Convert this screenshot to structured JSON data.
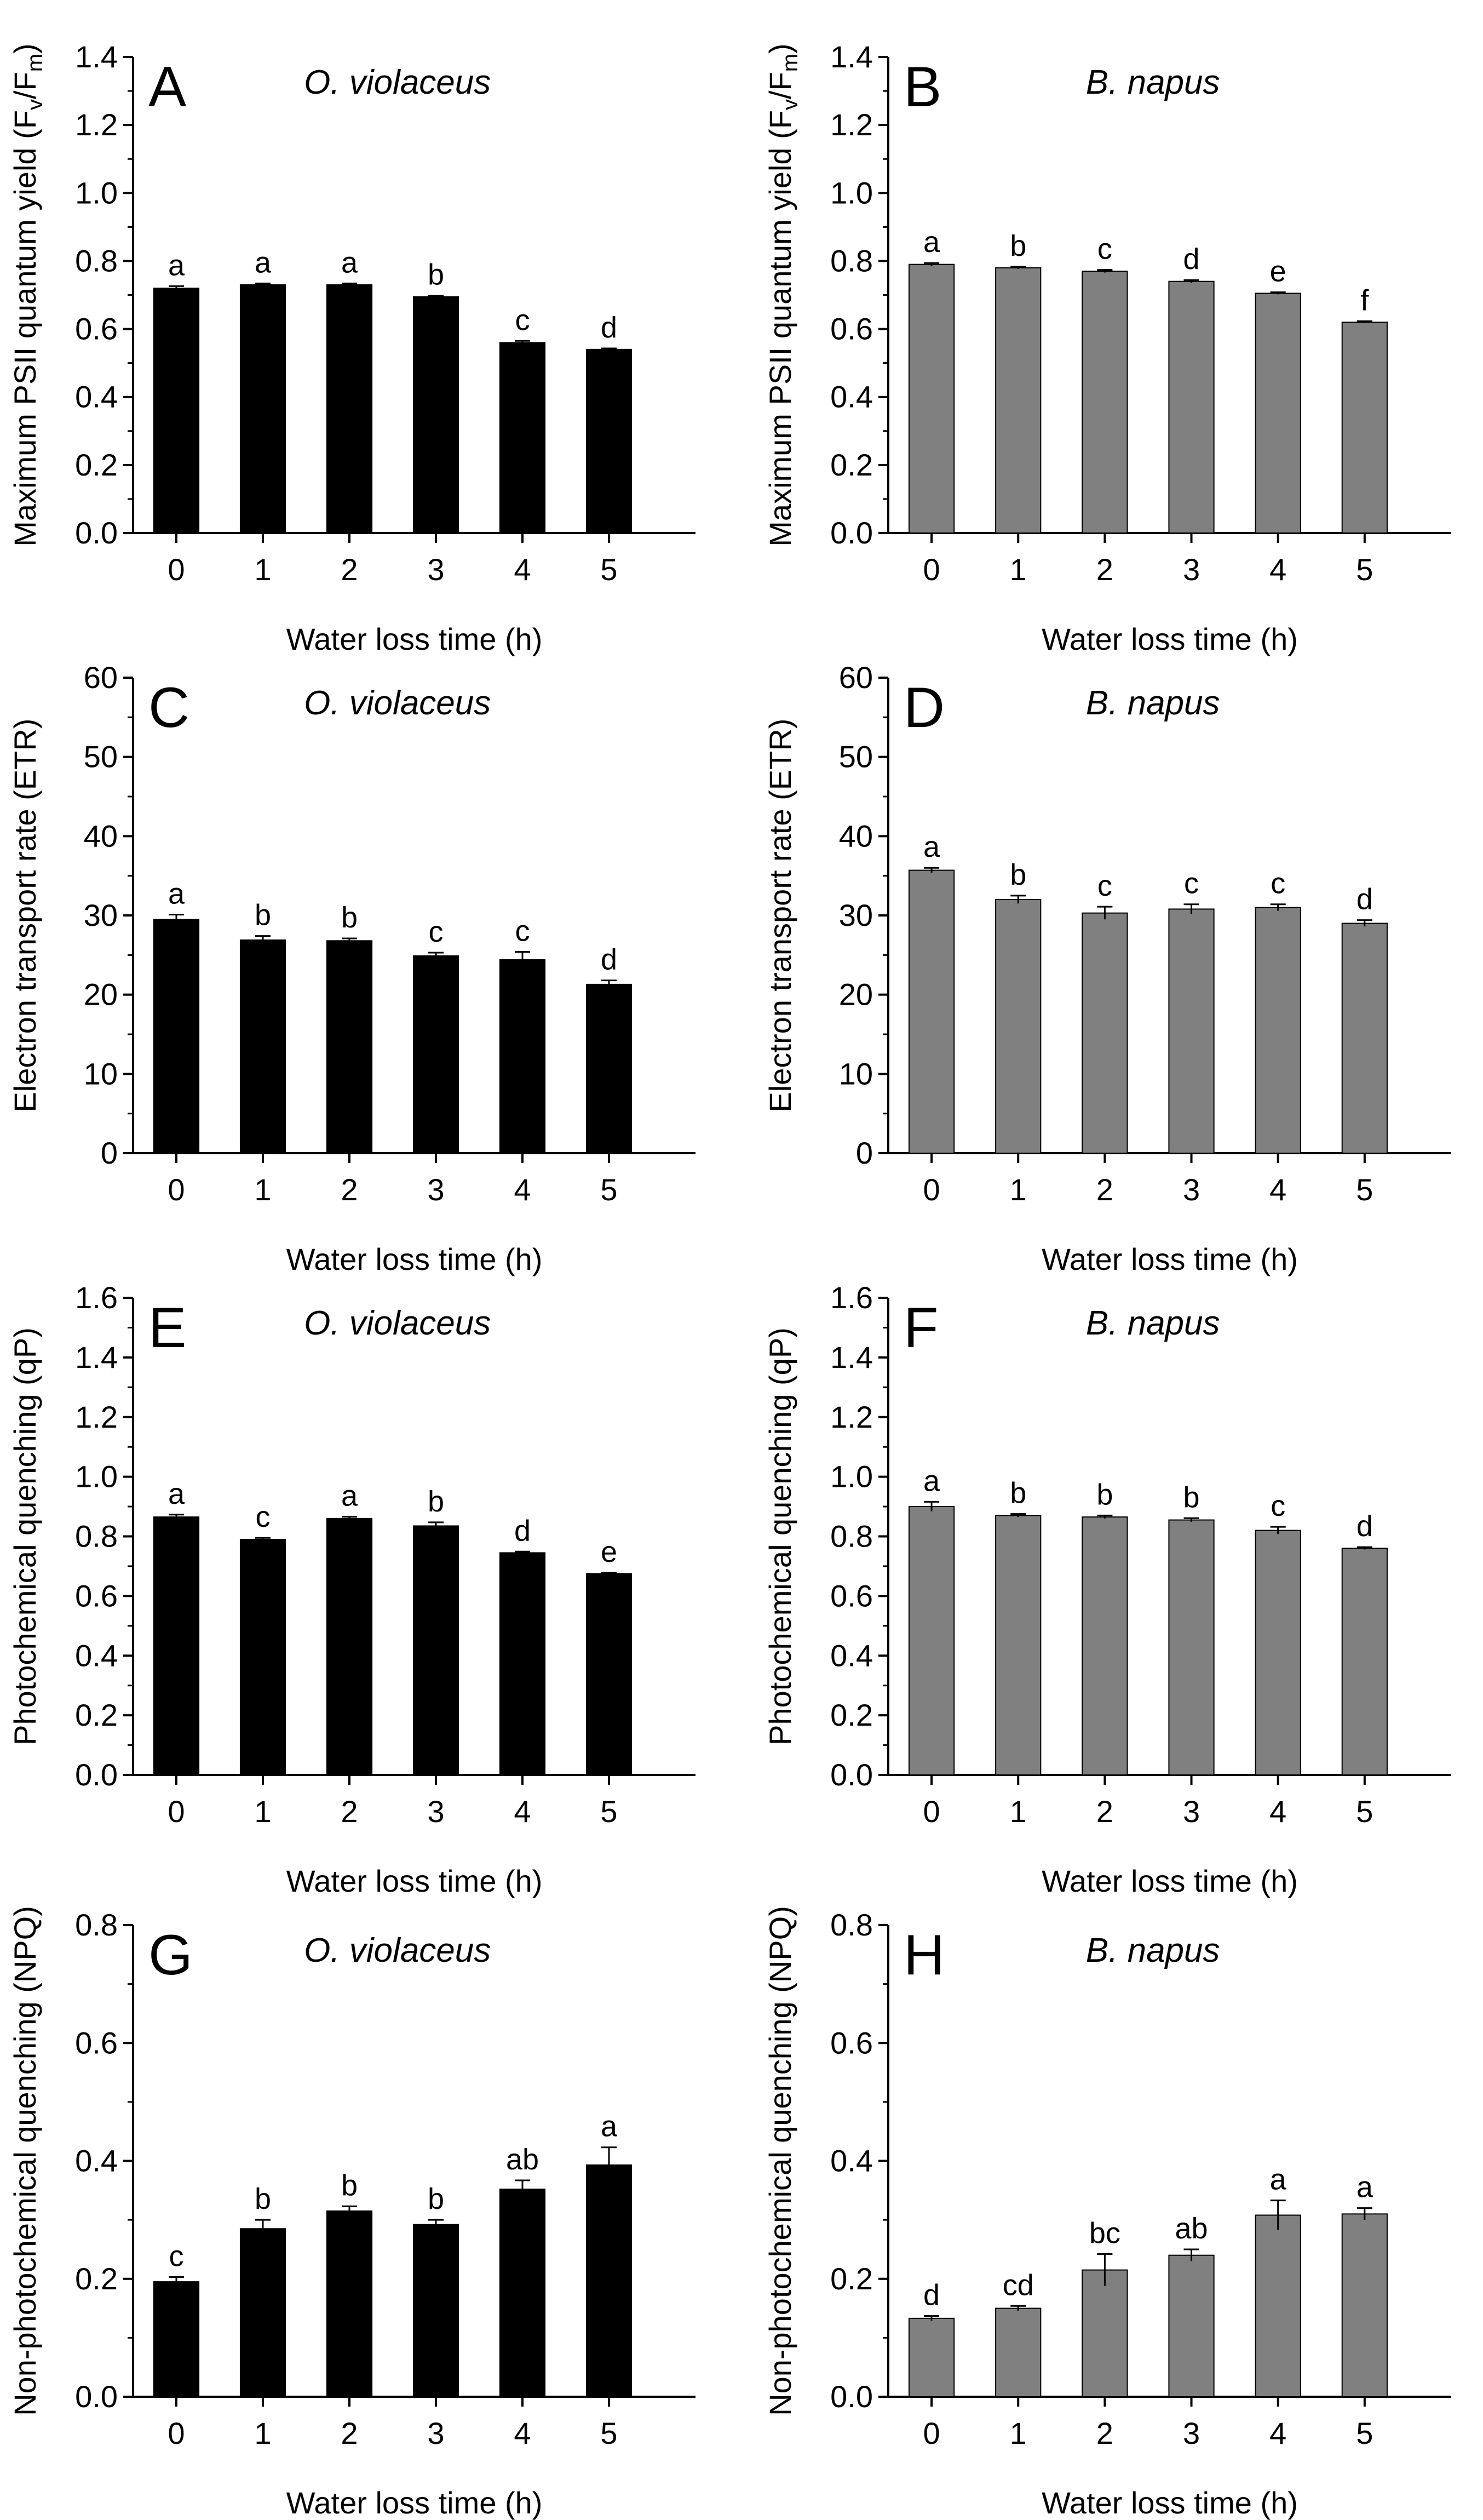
{
  "colors": {
    "dark_series": "#000000",
    "grey_series": "#808080",
    "axis": "#000000"
  },
  "chart_data": [
    {
      "panel": "A",
      "type": "bar",
      "species": "O. violaceus",
      "ylabel": "Maximum PSII quantum yield (F",
      "ylabel_sub_v": "v",
      "ylabel_mid": "/F",
      "ylabel_sub_m": "m",
      "ylabel_end": ")",
      "xlabel": "Water loss time (h)",
      "categories": [
        "0",
        "1",
        "2",
        "3",
        "4",
        "5"
      ],
      "values": [
        0.72,
        0.73,
        0.73,
        0.695,
        0.56,
        0.54
      ],
      "errors": [
        0.006,
        0.004,
        0.004,
        0.003,
        0.005,
        0.003
      ],
      "labels": [
        "a",
        "a",
        "a",
        "b",
        "c",
        "d"
      ],
      "ylim": [
        0,
        1.4
      ],
      "yticks": [
        "0.0",
        "0.2",
        "0.4",
        "0.6",
        "0.8",
        "1.0",
        "1.2",
        "1.4"
      ],
      "color": "#000000"
    },
    {
      "panel": "B",
      "type": "bar",
      "species": "B. napus",
      "ylabel": "Maximum PSII quantum yield (F",
      "ylabel_sub_v": "v",
      "ylabel_mid": "/F",
      "ylabel_sub_m": "m",
      "ylabel_end": ")",
      "xlabel": "Water loss time (h)",
      "categories": [
        "0",
        "1",
        "2",
        "3",
        "4",
        "5"
      ],
      "values": [
        0.79,
        0.78,
        0.77,
        0.74,
        0.705,
        0.62
      ],
      "errors": [
        0.004,
        0.003,
        0.004,
        0.004,
        0.003,
        0.003
      ],
      "labels": [
        "a",
        "b",
        "c",
        "d",
        "e",
        "f"
      ],
      "ylim": [
        0,
        1.4
      ],
      "yticks": [
        "0.0",
        "0.2",
        "0.4",
        "0.6",
        "0.8",
        "1.0",
        "1.2",
        "1.4"
      ],
      "color": "#808080"
    },
    {
      "panel": "C",
      "type": "bar",
      "species": "O. violaceus",
      "ylabel": "Electron transport rate (ETR)",
      "xlabel": "Water loss time (h)",
      "categories": [
        "0",
        "1",
        "2",
        "3",
        "4",
        "5"
      ],
      "values": [
        29.5,
        26.9,
        26.8,
        24.9,
        24.4,
        21.3
      ],
      "errors": [
        0.6,
        0.5,
        0.3,
        0.4,
        1.0,
        0.5
      ],
      "labels": [
        "a",
        "b",
        "b",
        "c",
        "c",
        "d"
      ],
      "ylim": [
        0,
        60
      ],
      "yticks": [
        "0",
        "10",
        "20",
        "30",
        "40",
        "50",
        "60"
      ],
      "color": "#000000"
    },
    {
      "panel": "D",
      "type": "bar",
      "species": "B. napus",
      "ylabel": "Electron transport rate (ETR)",
      "xlabel": "Water loss time (h)",
      "categories": [
        "0",
        "1",
        "2",
        "3",
        "4",
        "5"
      ],
      "values": [
        35.7,
        32.0,
        30.3,
        30.8,
        31.0,
        29.0
      ],
      "errors": [
        0.3,
        0.5,
        0.8,
        0.6,
        0.4,
        0.4
      ],
      "labels": [
        "a",
        "b",
        "c",
        "c",
        "c",
        "d"
      ],
      "ylim": [
        0,
        60
      ],
      "yticks": [
        "0",
        "10",
        "20",
        "30",
        "40",
        "50",
        "60"
      ],
      "color": "#808080"
    },
    {
      "panel": "E",
      "type": "bar",
      "species": "O. violaceus",
      "ylabel": "Photochemical quenching (qP)",
      "xlabel": "Water loss time (h)",
      "categories": [
        "0",
        "1",
        "2",
        "3",
        "4",
        "5"
      ],
      "values": [
        0.865,
        0.79,
        0.86,
        0.835,
        0.745,
        0.675
      ],
      "errors": [
        0.008,
        0.005,
        0.006,
        0.012,
        0.004,
        0.003
      ],
      "labels": [
        "a",
        "c",
        "a",
        "b",
        "d",
        "e"
      ],
      "ylim": [
        0,
        1.6
      ],
      "yticks": [
        "0.0",
        "0.2",
        "0.4",
        "0.6",
        "0.8",
        "1.0",
        "1.2",
        "1.4",
        "1.6"
      ],
      "color": "#000000"
    },
    {
      "panel": "F",
      "type": "bar",
      "species": "B. napus",
      "ylabel": "Photochemical quenching (qP)",
      "xlabel": "Water loss time (h)",
      "categories": [
        "0",
        "1",
        "2",
        "3",
        "4",
        "5"
      ],
      "values": [
        0.9,
        0.87,
        0.865,
        0.855,
        0.82,
        0.76
      ],
      "errors": [
        0.016,
        0.005,
        0.005,
        0.006,
        0.012,
        0.004
      ],
      "labels": [
        "a",
        "b",
        "b",
        "b",
        "c",
        "d"
      ],
      "ylim": [
        0,
        1.6
      ],
      "yticks": [
        "0.0",
        "0.2",
        "0.4",
        "0.6",
        "0.8",
        "1.0",
        "1.2",
        "1.4",
        "1.6"
      ],
      "color": "#808080"
    },
    {
      "panel": "G",
      "type": "bar",
      "species": "O. violaceus",
      "ylabel": "Non-photochemical quenching (NPQ)",
      "xlabel": "Water loss time (h)",
      "categories": [
        "0",
        "1",
        "2",
        "3",
        "4",
        "5"
      ],
      "values": [
        0.195,
        0.285,
        0.315,
        0.292,
        0.352,
        0.393
      ],
      "errors": [
        0.008,
        0.015,
        0.008,
        0.008,
        0.015,
        0.03
      ],
      "labels": [
        "c",
        "b",
        "b",
        "b",
        "ab",
        "a"
      ],
      "ylim": [
        0,
        0.8
      ],
      "yticks": [
        "0.0",
        "0.2",
        "0.4",
        "0.6",
        "0.8"
      ],
      "color": "#000000"
    },
    {
      "panel": "H",
      "type": "bar",
      "species": "B. napus",
      "ylabel": "Non-photochemical quenching (NPQ)",
      "xlabel": "Water loss time (h)",
      "categories": [
        "0",
        "1",
        "2",
        "3",
        "4",
        "5"
      ],
      "values": [
        0.133,
        0.15,
        0.215,
        0.24,
        0.308,
        0.31
      ],
      "errors": [
        0.004,
        0.004,
        0.027,
        0.01,
        0.025,
        0.01
      ],
      "labels": [
        "d",
        "cd",
        "bc",
        "ab",
        "a",
        "a"
      ],
      "ylim": [
        0,
        0.8
      ],
      "yticks": [
        "0.0",
        "0.2",
        "0.4",
        "0.6",
        "0.8"
      ],
      "color": "#808080"
    }
  ]
}
